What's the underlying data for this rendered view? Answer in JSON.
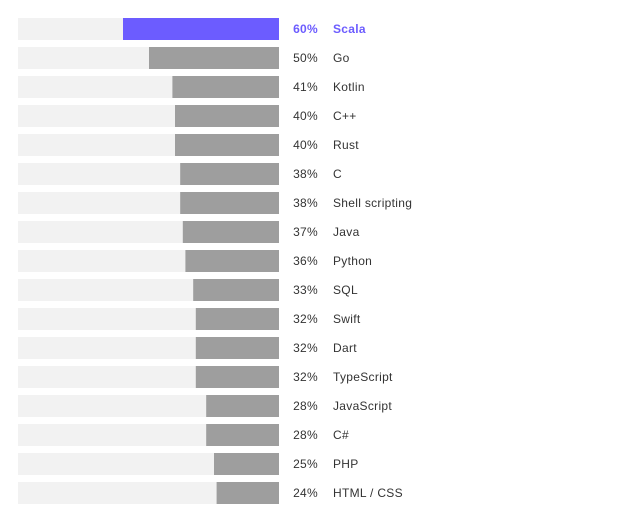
{
  "chart_data": {
    "type": "bar",
    "orientation": "horizontal",
    "value_suffix": "%",
    "xlim": [
      0,
      100
    ],
    "grid": false,
    "highlight_index": 0,
    "colors": {
      "highlight": "#6c5cff",
      "bar": "#9e9e9e",
      "track": "#f2f2f2",
      "text": "#333333"
    },
    "categories": [
      "Scala",
      "Go",
      "Kotlin",
      "C++",
      "Rust",
      "C",
      "Shell scripting",
      "Java",
      "Python",
      "SQL",
      "Swift",
      "Dart",
      "TypeScript",
      "JavaScript",
      "C#",
      "PHP",
      "HTML / CSS"
    ],
    "values": [
      60,
      50,
      41,
      40,
      40,
      38,
      38,
      37,
      36,
      33,
      32,
      32,
      32,
      28,
      28,
      25,
      24
    ],
    "value_labels": [
      "60%",
      "50%",
      "41%",
      "40%",
      "40%",
      "38%",
      "38%",
      "37%",
      "36%",
      "33%",
      "32%",
      "32%",
      "32%",
      "28%",
      "28%",
      "25%",
      "24%"
    ]
  }
}
